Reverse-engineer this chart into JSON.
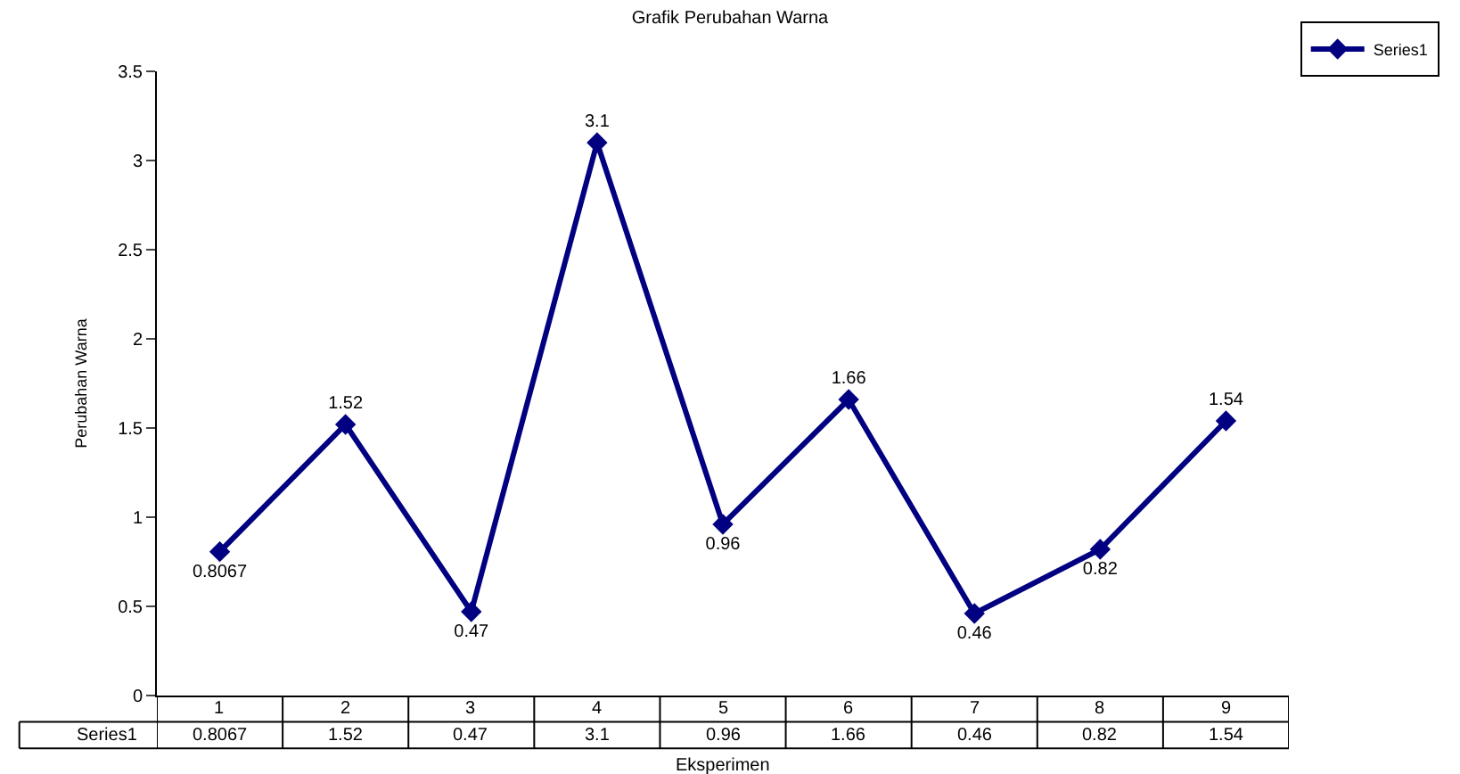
{
  "chart_data": {
    "type": "line",
    "title": "Grafik Perubahan Warna",
    "xlabel": "Eksperimen",
    "ylabel": "Perubahan Warna",
    "categories": [
      "1",
      "2",
      "3",
      "4",
      "5",
      "6",
      "7",
      "8",
      "9"
    ],
    "series": [
      {
        "name": "Series1",
        "color": "#000080",
        "values": [
          0.8067,
          1.52,
          0.47,
          3.1,
          0.96,
          1.66,
          0.46,
          0.82,
          1.54
        ],
        "value_labels": [
          "0.8067",
          "1.52",
          "0.47",
          "3.1",
          "0.96",
          "1.66",
          "0.46",
          "0.82",
          "1.54"
        ]
      }
    ],
    "ylim": [
      0,
      3.5
    ],
    "yticks": [
      0,
      0.5,
      1,
      1.5,
      2,
      2.5,
      3,
      3.5
    ],
    "grid": false,
    "legend": "top right",
    "marker": "diamond",
    "line_style": "solid"
  }
}
